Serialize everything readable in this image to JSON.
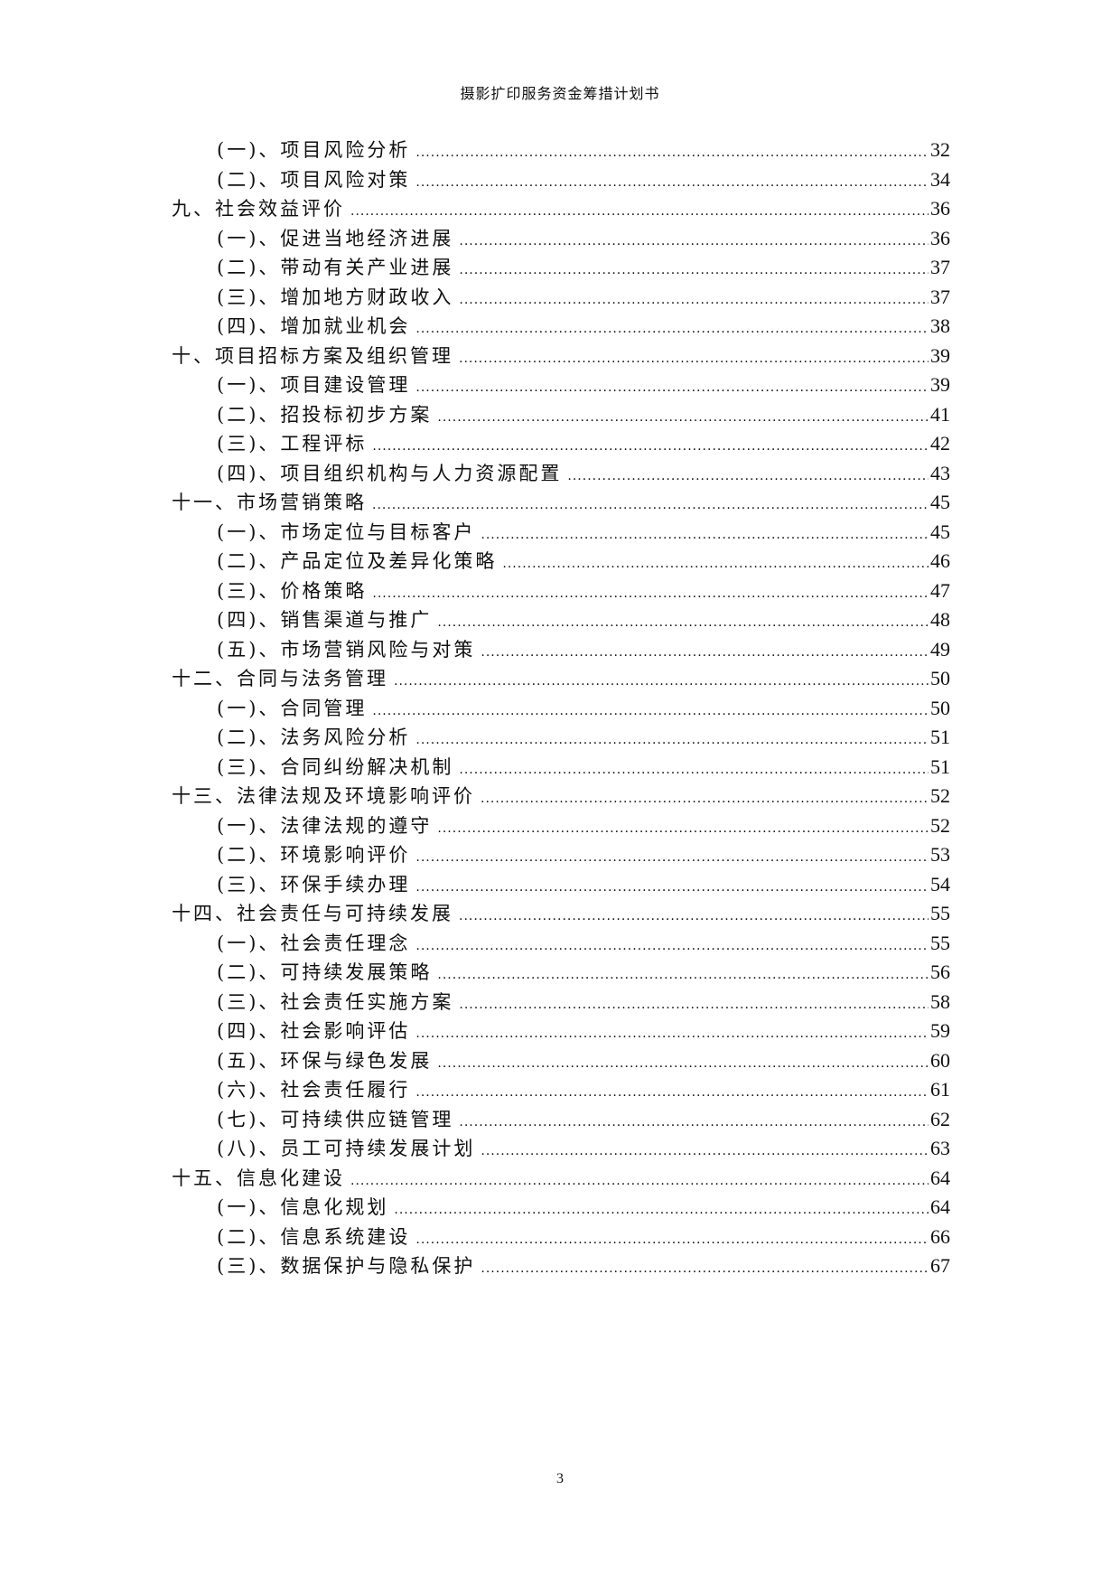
{
  "header": {
    "title": "摄影扩印服务资金筹措计划书"
  },
  "toc": [
    {
      "level": 2,
      "title": "(一)、项目风险分析",
      "page": "32"
    },
    {
      "level": 2,
      "title": "(二)、项目风险对策",
      "page": "34"
    },
    {
      "level": 1,
      "title": "九、社会效益评价",
      "page": "36"
    },
    {
      "level": 2,
      "title": "(一)、促进当地经济进展",
      "page": "36"
    },
    {
      "level": 2,
      "title": "(二)、带动有关产业进展",
      "page": "37"
    },
    {
      "level": 2,
      "title": "(三)、增加地方财政收入",
      "page": "37"
    },
    {
      "level": 2,
      "title": "(四)、增加就业机会",
      "page": "38"
    },
    {
      "level": 1,
      "title": "十、项目招标方案及组织管理",
      "page": "39"
    },
    {
      "level": 2,
      "title": "(一)、项目建设管理",
      "page": "39"
    },
    {
      "level": 2,
      "title": "(二)、招投标初步方案",
      "page": "41"
    },
    {
      "level": 2,
      "title": "(三)、工程评标",
      "page": "42"
    },
    {
      "level": 2,
      "title": "(四)、项目组织机构与人力资源配置",
      "page": "43"
    },
    {
      "level": 1,
      "title": "十一、市场营销策略",
      "page": "45"
    },
    {
      "level": 2,
      "title": "(一)、市场定位与目标客户",
      "page": "45"
    },
    {
      "level": 2,
      "title": "(二)、产品定位及差异化策略",
      "page": "46"
    },
    {
      "level": 2,
      "title": "(三)、价格策略",
      "page": "47"
    },
    {
      "level": 2,
      "title": "(四)、销售渠道与推广",
      "page": "48"
    },
    {
      "level": 2,
      "title": "(五)、市场营销风险与对策",
      "page": "49"
    },
    {
      "level": 1,
      "title": "十二、合同与法务管理",
      "page": "50"
    },
    {
      "level": 2,
      "title": "(一)、合同管理",
      "page": "50"
    },
    {
      "level": 2,
      "title": "(二)、法务风险分析",
      "page": "51"
    },
    {
      "level": 2,
      "title": "(三)、合同纠纷解决机制",
      "page": "51"
    },
    {
      "level": 1,
      "title": "十三、法律法规及环境影响评价",
      "page": "52"
    },
    {
      "level": 2,
      "title": "(一)、法律法规的遵守",
      "page": "52"
    },
    {
      "level": 2,
      "title": "(二)、环境影响评价",
      "page": "53"
    },
    {
      "level": 2,
      "title": "(三)、环保手续办理",
      "page": "54"
    },
    {
      "level": 1,
      "title": "十四、社会责任与可持续发展",
      "page": "55"
    },
    {
      "level": 2,
      "title": "(一)、社会责任理念",
      "page": "55"
    },
    {
      "level": 2,
      "title": "(二)、可持续发展策略",
      "page": "56"
    },
    {
      "level": 2,
      "title": "(三)、社会责任实施方案",
      "page": "58"
    },
    {
      "level": 2,
      "title": "(四)、社会影响评估",
      "page": "59"
    },
    {
      "level": 2,
      "title": "(五)、环保与绿色发展",
      "page": "60"
    },
    {
      "level": 2,
      "title": "(六)、社会责任履行",
      "page": "61"
    },
    {
      "level": 2,
      "title": "(七)、可持续供应链管理",
      "page": "62"
    },
    {
      "level": 2,
      "title": "(八)、员工可持续发展计划",
      "page": "63"
    },
    {
      "level": 1,
      "title": "十五、信息化建设",
      "page": "64"
    },
    {
      "level": 2,
      "title": "(一)、信息化规划",
      "page": "64"
    },
    {
      "level": 2,
      "title": "(二)、信息系统建设",
      "page": "66"
    },
    {
      "level": 2,
      "title": "(三)、数据保护与隐私保护",
      "page": "67"
    }
  ],
  "footer": {
    "page_number": "3"
  }
}
